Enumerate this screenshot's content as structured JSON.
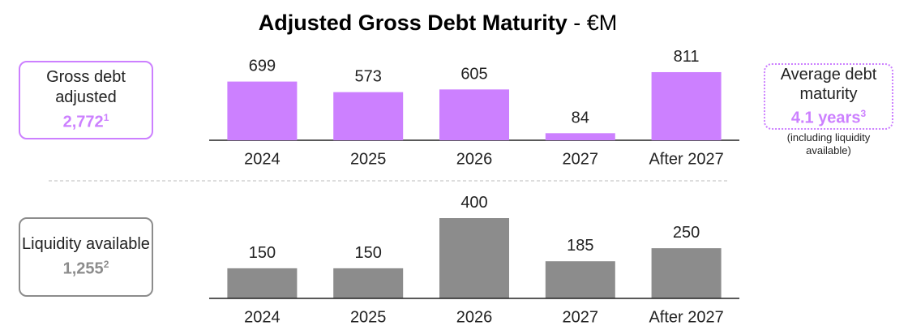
{
  "title": {
    "main": "Adjusted Gross Debt Maturity",
    "unit": "- €M"
  },
  "boxes": {
    "gross": {
      "label": "Gross debt adjusted",
      "value": "2,772",
      "note": "1"
    },
    "liquidity": {
      "label": "Liquidity available",
      "value": "1,255",
      "note": "2"
    },
    "maturity": {
      "label": "Average debt maturity",
      "value": "4.1 years",
      "note": "3",
      "sub": "(including liquidity available)"
    }
  },
  "chart_data": [
    {
      "type": "bar",
      "categories": [
        "2024",
        "2025",
        "2026",
        "2027",
        "After 2027"
      ],
      "values": [
        699,
        573,
        605,
        84,
        811
      ],
      "color": "#cc80ff"
    },
    {
      "type": "bar",
      "categories": [
        "2024",
        "2025",
        "2026",
        "2027",
        "After 2027"
      ],
      "values": [
        150,
        150,
        400,
        185,
        250
      ],
      "color": "#8c8c8c"
    }
  ]
}
